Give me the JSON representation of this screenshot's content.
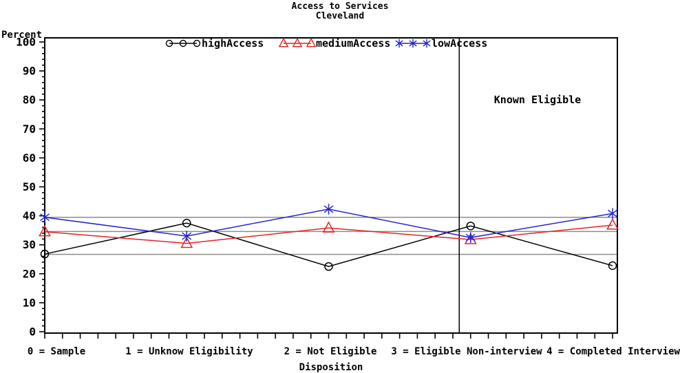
{
  "title": {
    "line1": "Access to Services",
    "line2": "Cleveland"
  },
  "chart_data": {
    "type": "line",
    "title": "Access to Services",
    "subtitle": "Cleveland",
    "xlabel": "Disposition",
    "ylabel": "Percent",
    "ylim": [
      0,
      100
    ],
    "ytick_step": 10,
    "y_minor_step": 2,
    "x_minor_divisions_per_category": 8,
    "grid": "off",
    "categories": [
      "0 = Sample",
      "1 = Unknow Eligibility",
      "2 = Not Eligible",
      "3 = Eligible Non-interview",
      "4 = Completed Interview"
    ],
    "series": [
      {
        "name": "highAccess",
        "color": "#000000",
        "marker": "circle",
        "values": [
          26.8,
          37.5,
          22.5,
          36.5,
          22.8
        ]
      },
      {
        "name": "mediumAccess",
        "color": "#e32222",
        "marker": "triangle",
        "values": [
          34.5,
          30.5,
          35.8,
          31.8,
          36.8
        ]
      },
      {
        "name": "lowAccess",
        "color": "#2424ce",
        "marker": "star",
        "values": [
          39.5,
          33.0,
          42.3,
          32.5,
          40.8
        ]
      }
    ],
    "reference_lines": {
      "color": "#8c8c8c",
      "values": [
        39.5,
        34.6,
        26.7
      ]
    },
    "divider": {
      "x": 2.92,
      "label": "Known Eligible"
    },
    "legend": {
      "position": "top-inside",
      "entries": [
        "highAccess",
        "mediumAccess",
        "lowAccess"
      ]
    }
  }
}
